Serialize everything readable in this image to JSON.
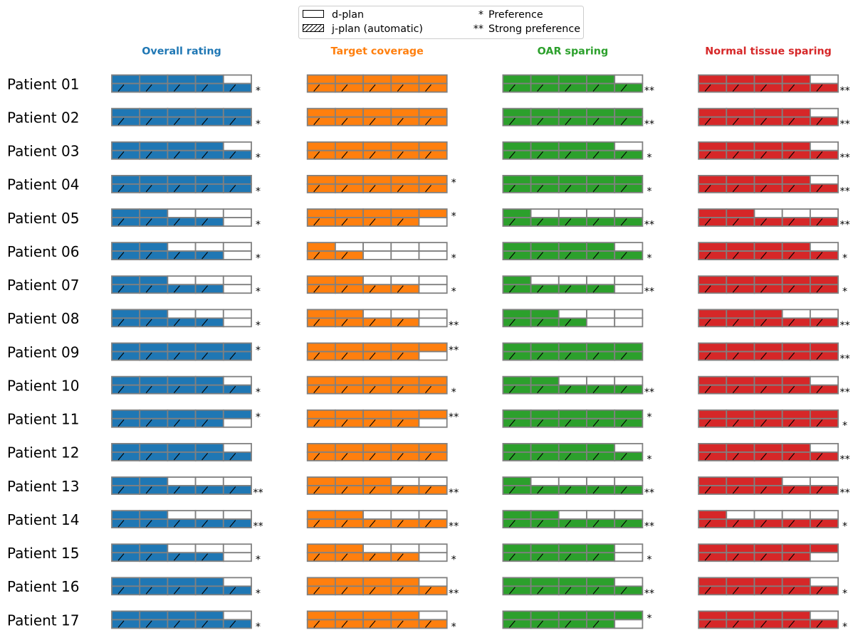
{
  "chart_data": {
    "type": "bar",
    "max_rating": 5,
    "legend": {
      "position": "top-center",
      "plans": [
        {
          "label": "d-plan",
          "hatched": false
        },
        {
          "label": "j-plan (automatic)",
          "hatched": true
        }
      ],
      "marks": [
        {
          "symbol": "*",
          "label": "Preference"
        },
        {
          "symbol": "**",
          "label": "Strong preference"
        }
      ]
    },
    "categories": [
      {
        "title": "Overall rating",
        "color": "#1f77b4"
      },
      {
        "title": "Target coverage",
        "color": "#ff7f0e"
      },
      {
        "title": "OAR sparing",
        "color": "#2ca02c"
      },
      {
        "title": "Normal tissue sparing",
        "color": "#d62728"
      }
    ],
    "rows": [
      {
        "label": "Patient 01",
        "d_plan": [
          4,
          5,
          4,
          4
        ],
        "j_plan": [
          5,
          5,
          5,
          5
        ],
        "d_mark": [
          "",
          "",
          "",
          ""
        ],
        "j_mark": [
          "*",
          "",
          "**",
          "**"
        ]
      },
      {
        "label": "Patient 02",
        "d_plan": [
          5,
          5,
          5,
          4
        ],
        "j_plan": [
          5,
          5,
          5,
          5
        ],
        "d_mark": [
          "",
          "",
          "",
          ""
        ],
        "j_mark": [
          "*",
          "",
          "**",
          "**"
        ]
      },
      {
        "label": "Patient 03",
        "d_plan": [
          4,
          5,
          4,
          4
        ],
        "j_plan": [
          5,
          5,
          5,
          5
        ],
        "d_mark": [
          "",
          "",
          "",
          ""
        ],
        "j_mark": [
          "*",
          "",
          "*",
          "**"
        ]
      },
      {
        "label": "Patient 04",
        "d_plan": [
          5,
          5,
          5,
          4
        ],
        "j_plan": [
          5,
          5,
          5,
          5
        ],
        "d_mark": [
          "",
          "*",
          "",
          ""
        ],
        "j_mark": [
          "*",
          "",
          "*",
          "**"
        ]
      },
      {
        "label": "Patient 05",
        "d_plan": [
          2,
          5,
          1,
          2
        ],
        "j_plan": [
          4,
          4,
          5,
          5
        ],
        "d_mark": [
          "",
          "*",
          "",
          ""
        ],
        "j_mark": [
          "*",
          "",
          "**",
          "**"
        ]
      },
      {
        "label": "Patient 06",
        "d_plan": [
          2,
          1,
          4,
          4
        ],
        "j_plan": [
          4,
          2,
          5,
          5
        ],
        "d_mark": [
          "",
          "",
          "",
          ""
        ],
        "j_mark": [
          "*",
          "*",
          "*",
          "*"
        ]
      },
      {
        "label": "Patient 07",
        "d_plan": [
          2,
          2,
          1,
          5
        ],
        "j_plan": [
          4,
          4,
          4,
          5
        ],
        "d_mark": [
          "",
          "",
          "",
          ""
        ],
        "j_mark": [
          "*",
          "*",
          "**",
          "*"
        ]
      },
      {
        "label": "Patient 08",
        "d_plan": [
          2,
          2,
          2,
          3
        ],
        "j_plan": [
          4,
          4,
          3,
          5
        ],
        "d_mark": [
          "",
          "",
          "",
          ""
        ],
        "j_mark": [
          "*",
          "**",
          "",
          "**"
        ]
      },
      {
        "label": "Patient 09",
        "d_plan": [
          5,
          5,
          5,
          5
        ],
        "j_plan": [
          5,
          4,
          5,
          5
        ],
        "d_mark": [
          "*",
          "**",
          "",
          ""
        ],
        "j_mark": [
          "",
          "",
          "",
          "**"
        ]
      },
      {
        "label": "Patient 10",
        "d_plan": [
          4,
          5,
          2,
          4
        ],
        "j_plan": [
          5,
          5,
          5,
          5
        ],
        "d_mark": [
          "",
          "",
          "",
          ""
        ],
        "j_mark": [
          "*",
          "*",
          "**",
          "**"
        ]
      },
      {
        "label": "Patient 11",
        "d_plan": [
          5,
          5,
          5,
          5
        ],
        "j_plan": [
          4,
          4,
          5,
          5
        ],
        "d_mark": [
          "*",
          "**",
          "*",
          ""
        ],
        "j_mark": [
          "",
          "",
          "",
          "*"
        ]
      },
      {
        "label": "Patient 12",
        "d_plan": [
          4,
          5,
          4,
          4
        ],
        "j_plan": [
          5,
          5,
          5,
          5
        ],
        "d_mark": [
          "",
          "",
          "",
          ""
        ],
        "j_mark": [
          "",
          "",
          "*",
          "**"
        ]
      },
      {
        "label": "Patient 13",
        "d_plan": [
          2,
          3,
          1,
          3
        ],
        "j_plan": [
          5,
          5,
          5,
          5
        ],
        "d_mark": [
          "",
          "",
          "",
          ""
        ],
        "j_mark": [
          "**",
          "**",
          "**",
          "**"
        ]
      },
      {
        "label": "Patient 14",
        "d_plan": [
          2,
          2,
          2,
          1
        ],
        "j_plan": [
          5,
          5,
          5,
          5
        ],
        "d_mark": [
          "",
          "",
          "",
          ""
        ],
        "j_mark": [
          "**",
          "**",
          "**",
          "*"
        ]
      },
      {
        "label": "Patient 15",
        "d_plan": [
          2,
          2,
          4,
          5
        ],
        "j_plan": [
          4,
          4,
          4,
          4
        ],
        "d_mark": [
          "",
          "",
          "",
          ""
        ],
        "j_mark": [
          "*",
          "*",
          "*",
          ""
        ]
      },
      {
        "label": "Patient 16",
        "d_plan": [
          4,
          4,
          4,
          4
        ],
        "j_plan": [
          5,
          5,
          5,
          5
        ],
        "d_mark": [
          "",
          "",
          "",
          ""
        ],
        "j_mark": [
          "*",
          "**",
          "**",
          "*"
        ]
      },
      {
        "label": "Patient 17",
        "d_plan": [
          4,
          4,
          5,
          4
        ],
        "j_plan": [
          5,
          5,
          4,
          5
        ],
        "d_mark": [
          "",
          "",
          "*",
          ""
        ],
        "j_mark": [
          "*",
          "*",
          "",
          "*"
        ]
      }
    ]
  }
}
